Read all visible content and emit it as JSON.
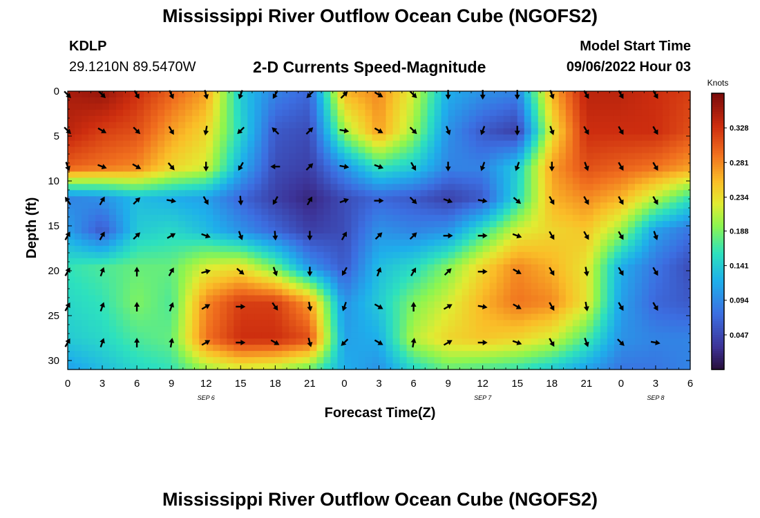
{
  "header": {
    "title": "Mississippi River Outflow Ocean Cube (NGOFS2)",
    "station_id": "KDLP",
    "coordinates": "29.1210N  89.5470W",
    "subtitle": "2-D Currents Speed-Magnitude",
    "model_start_label": "Model Start Time",
    "model_start_value": "09/06/2022 Hour 03"
  },
  "footer": {
    "title": "Mississippi River Outflow Ocean Cube (NGOFS2)"
  },
  "chart_data": {
    "type": "heatmap",
    "title": "2-D Currents Speed-Magnitude",
    "xlabel": "Forecast Time(Z)",
    "ylabel": "Depth (ft)",
    "x_tick_labels": [
      "0",
      "3",
      "6",
      "9",
      "12",
      "15",
      "18",
      "21",
      "0",
      "3",
      "6",
      "9",
      "12",
      "15",
      "18",
      "21",
      "0",
      "3",
      "6"
    ],
    "x_range_hours": [
      0,
      54
    ],
    "y_ticks": [
      0,
      5,
      10,
      15,
      20,
      25,
      30
    ],
    "y_range_ft": [
      0,
      31
    ],
    "day_labels": [
      {
        "text": "SEP 6",
        "hour": 12
      },
      {
        "text": "SEP 7",
        "hour": 36
      },
      {
        "text": "SEP 8",
        "hour": 51
      }
    ],
    "colorbar": {
      "label": "Knots",
      "ticks": [
        "0.328",
        "0.281",
        "0.234",
        "0.188",
        "0.141",
        "0.094",
        "0.047"
      ],
      "tick_values": [
        0.328,
        0.281,
        0.234,
        0.188,
        0.141,
        0.094,
        0.047
      ],
      "range": [
        0.0,
        0.375
      ]
    },
    "grid_hours": [
      0,
      3,
      6,
      9,
      12,
      15,
      18,
      21,
      24,
      27,
      30,
      33,
      36,
      39,
      42,
      45,
      48,
      51,
      54
    ],
    "grid_depths": [
      0,
      4.5,
      8.5,
      11.9,
      15.5,
      19.5,
      23.5,
      27.6,
      31
    ],
    "speed_knots": [
      [
        0.35,
        0.36,
        0.33,
        0.3,
        0.27,
        0.14,
        0.09,
        0.07,
        0.26,
        0.28,
        0.22,
        0.12,
        0.1,
        0.09,
        0.26,
        0.34,
        0.34,
        0.33,
        0.32
      ],
      [
        0.34,
        0.32,
        0.31,
        0.27,
        0.24,
        0.15,
        0.06,
        0.05,
        0.2,
        0.27,
        0.2,
        0.1,
        0.06,
        0.04,
        0.23,
        0.33,
        0.33,
        0.33,
        0.31
      ],
      [
        0.3,
        0.29,
        0.28,
        0.24,
        0.22,
        0.12,
        0.05,
        0.04,
        0.1,
        0.16,
        0.14,
        0.09,
        0.09,
        0.14,
        0.27,
        0.31,
        0.3,
        0.29,
        0.27
      ],
      [
        0.09,
        0.1,
        0.13,
        0.12,
        0.11,
        0.07,
        0.04,
        0.02,
        0.05,
        0.07,
        0.06,
        0.04,
        0.06,
        0.15,
        0.26,
        0.28,
        0.26,
        0.21,
        0.16
      ],
      [
        0.11,
        0.06,
        0.14,
        0.15,
        0.13,
        0.1,
        0.07,
        0.04,
        0.05,
        0.1,
        0.09,
        0.1,
        0.16,
        0.22,
        0.24,
        0.25,
        0.2,
        0.11,
        0.08
      ],
      [
        0.16,
        0.17,
        0.18,
        0.18,
        0.22,
        0.23,
        0.18,
        0.1,
        0.06,
        0.13,
        0.15,
        0.19,
        0.24,
        0.28,
        0.26,
        0.23,
        0.12,
        0.08,
        0.05
      ],
      [
        0.15,
        0.16,
        0.19,
        0.17,
        0.28,
        0.32,
        0.32,
        0.27,
        0.1,
        0.14,
        0.19,
        0.22,
        0.26,
        0.29,
        0.28,
        0.23,
        0.11,
        0.07,
        0.06
      ],
      [
        0.14,
        0.15,
        0.17,
        0.18,
        0.29,
        0.33,
        0.33,
        0.31,
        0.11,
        0.12,
        0.21,
        0.24,
        0.25,
        0.24,
        0.22,
        0.17,
        0.1,
        0.09,
        0.09
      ],
      [
        0.11,
        0.13,
        0.15,
        0.16,
        0.2,
        0.22,
        0.21,
        0.18,
        0.12,
        0.1,
        0.15,
        0.18,
        0.17,
        0.16,
        0.14,
        0.11,
        0.08,
        0.08,
        0.09
      ]
    ],
    "arrow_hours": [
      0,
      3,
      6,
      9,
      12,
      15,
      18,
      21,
      24,
      27,
      30,
      33,
      36,
      39,
      42,
      45,
      48,
      51
    ],
    "arrow_depths": [
      0.4,
      4.4,
      8.4,
      12.2,
      16.1,
      20.1,
      24.0,
      28.0
    ],
    "arrow_direction_deg": [
      [
        135,
        135,
        150,
        155,
        165,
        200,
        210,
        225,
        45,
        120,
        135,
        180,
        180,
        180,
        160,
        150,
        150,
        150
      ],
      [
        135,
        120,
        135,
        150,
        190,
        225,
        315,
        45,
        100,
        120,
        135,
        160,
        200,
        180,
        160,
        150,
        150,
        150
      ],
      [
        160,
        110,
        120,
        140,
        180,
        210,
        270,
        45,
        100,
        110,
        150,
        180,
        200,
        200,
        180,
        160,
        150,
        150
      ],
      [
        325,
        30,
        45,
        100,
        150,
        175,
        210,
        30,
        70,
        90,
        135,
        110,
        100,
        130,
        150,
        150,
        150,
        150
      ],
      [
        30,
        30,
        45,
        60,
        110,
        160,
        175,
        180,
        30,
        45,
        45,
        90,
        90,
        110,
        150,
        150,
        150,
        160
      ],
      [
        30,
        20,
        0,
        30,
        75,
        130,
        160,
        180,
        210,
        20,
        30,
        45,
        90,
        120,
        150,
        170,
        150,
        150
      ],
      [
        30,
        20,
        0,
        20,
        60,
        90,
        145,
        170,
        200,
        120,
        0,
        60,
        100,
        120,
        150,
        170,
        150,
        150
      ],
      [
        30,
        20,
        0,
        10,
        60,
        90,
        120,
        165,
        225,
        120,
        10,
        60,
        90,
        110,
        150,
        160,
        135,
        100
      ]
    ]
  }
}
